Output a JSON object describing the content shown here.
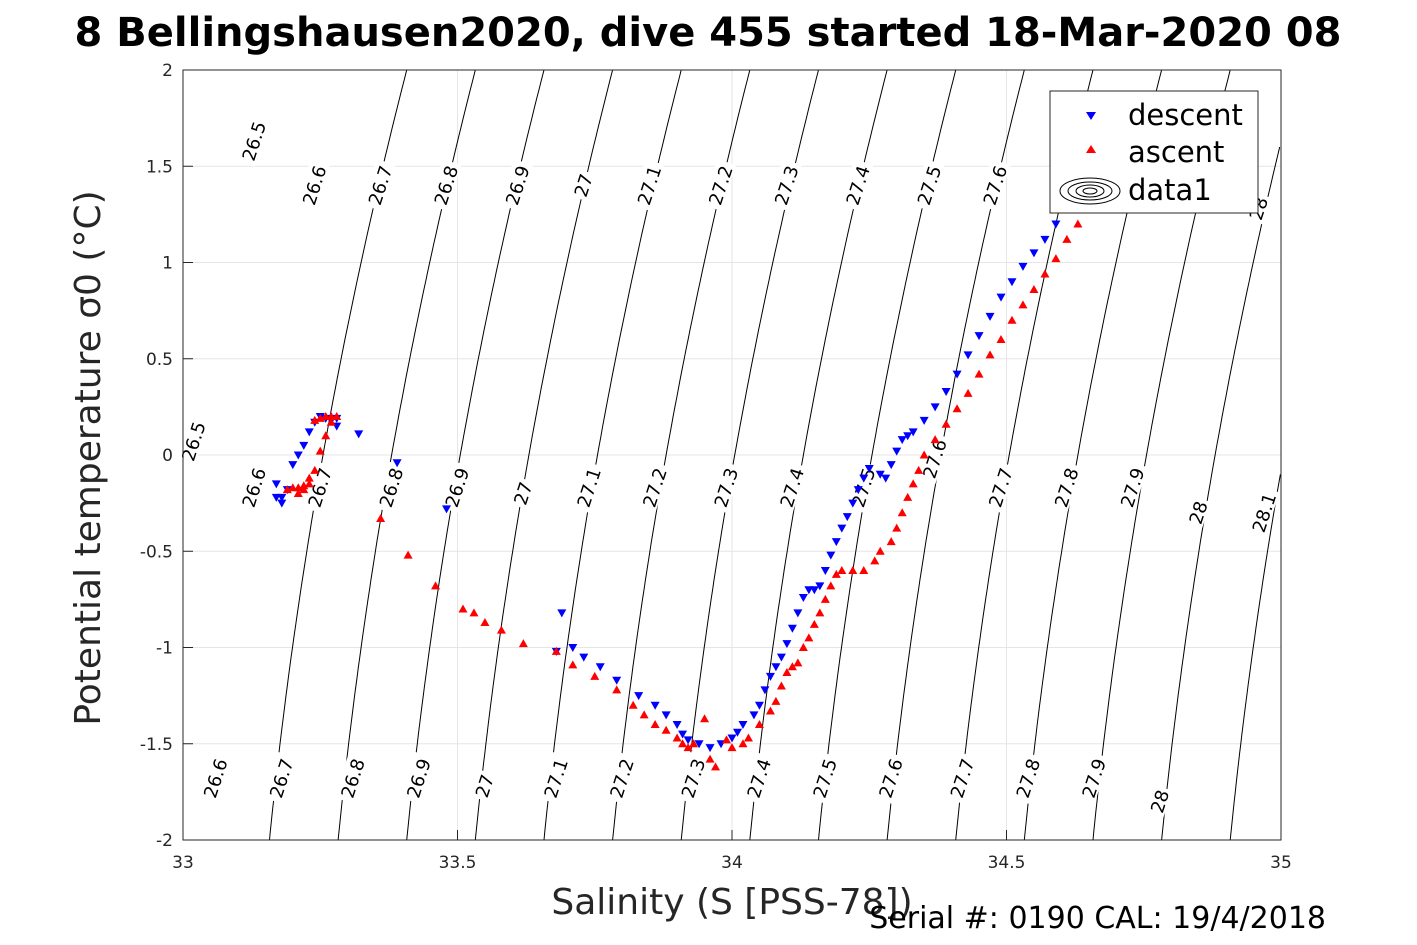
{
  "chart_data": {
    "type": "scatter",
    "title": "8 Bellingshausen2020, dive 455 started 18-Mar-2020 08",
    "xlabel": "Salinity (S [PSS-78])",
    "ylabel": "Potential temperature σ0 (°C)",
    "footer": "Serial #: 0190  CAL: 19/4/2018",
    "xlim": [
      33,
      35
    ],
    "ylim": [
      -2,
      2
    ],
    "xticks": [
      33,
      33.5,
      34,
      34.5,
      35
    ],
    "yticks": [
      -2,
      -1.5,
      -1,
      -0.5,
      0,
      0.5,
      1,
      1.5,
      2
    ],
    "xtick_labels": [
      "33",
      "33.5",
      "34",
      "34.5",
      "35"
    ],
    "ytick_labels": [
      "-2",
      "-1.5",
      "-1",
      "-0.5",
      "0",
      "0.5",
      "1",
      "1.5",
      "2"
    ],
    "grid": true,
    "legend_position": "top-right",
    "legend": [
      "descent",
      "ascent",
      "data1"
    ],
    "colors": {
      "descent": "#0000ff",
      "ascent": "#ff0000",
      "contour": "#000000",
      "grid": "#e6e6e6"
    },
    "contours": {
      "sigma_levels": [
        "26.5",
        "26.6",
        "26.7",
        "26.8",
        "26.9",
        "27",
        "27.1",
        "27.2",
        "27.3",
        "27.4",
        "27.5",
        "27.6",
        "27.7",
        "27.8",
        "27.9",
        "28",
        "28.1"
      ],
      "top_labels": [
        {
          "text": "26.5",
          "s": 33.13,
          "t": 1.63
        },
        {
          "text": "26.6",
          "s": 33.24,
          "t": 1.4
        },
        {
          "text": "26.7",
          "s": 33.36,
          "t": 1.4
        },
        {
          "text": "26.8",
          "s": 33.48,
          "t": 1.4
        },
        {
          "text": "26.9",
          "s": 33.61,
          "t": 1.4
        },
        {
          "text": "27",
          "s": 33.73,
          "t": 1.4
        },
        {
          "text": "27.1",
          "s": 33.85,
          "t": 1.4
        },
        {
          "text": "27.2",
          "s": 33.98,
          "t": 1.4
        },
        {
          "text": "27.3",
          "s": 34.1,
          "t": 1.4
        },
        {
          "text": "27.4",
          "s": 34.23,
          "t": 1.4
        },
        {
          "text": "27.5",
          "s": 34.36,
          "t": 1.4
        },
        {
          "text": "27.6",
          "s": 34.48,
          "t": 1.4
        },
        {
          "text": "28",
          "s": 34.96,
          "t": 1.28
        }
      ],
      "middle_labels": [
        {
          "text": "26.5",
          "s": 33.02,
          "t": 0.07
        },
        {
          "text": "26.6",
          "s": 33.13,
          "t": -0.17
        },
        {
          "text": "26.7",
          "s": 33.25,
          "t": -0.17
        },
        {
          "text": "26.8",
          "s": 33.38,
          "t": -0.17
        },
        {
          "text": "26.9",
          "s": 33.5,
          "t": -0.17
        },
        {
          "text": "27",
          "s": 33.62,
          "t": -0.2
        },
        {
          "text": "27.1",
          "s": 33.74,
          "t": -0.17
        },
        {
          "text": "27.2",
          "s": 33.86,
          "t": -0.17
        },
        {
          "text": "27.3",
          "s": 33.99,
          "t": -0.17
        },
        {
          "text": "27.4",
          "s": 34.11,
          "t": -0.17
        },
        {
          "text": "27.5",
          "s": 34.24,
          "t": -0.17
        },
        {
          "text": "27.6",
          "s": 34.37,
          "t": -0.02
        },
        {
          "text": "27.7",
          "s": 34.49,
          "t": -0.17
        },
        {
          "text": "27.8",
          "s": 34.61,
          "t": -0.17
        },
        {
          "text": "27.9",
          "s": 34.73,
          "t": -0.17
        },
        {
          "text": "28",
          "s": 34.85,
          "t": -0.3
        },
        {
          "text": "28.1",
          "s": 34.97,
          "t": -0.3
        }
      ],
      "bottom_labels": [
        {
          "text": "26.6",
          "s": 33.06,
          "t": -1.68
        },
        {
          "text": "26.7",
          "s": 33.18,
          "t": -1.68
        },
        {
          "text": "26.8",
          "s": 33.31,
          "t": -1.68
        },
        {
          "text": "26.9",
          "s": 33.43,
          "t": -1.68
        },
        {
          "text": "27",
          "s": 33.55,
          "t": -1.72
        },
        {
          "text": "27.1",
          "s": 33.68,
          "t": -1.68
        },
        {
          "text": "27.2",
          "s": 33.8,
          "t": -1.68
        },
        {
          "text": "27.3",
          "s": 33.93,
          "t": -1.68
        },
        {
          "text": "27.4",
          "s": 34.05,
          "t": -1.68
        },
        {
          "text": "27.5",
          "s": 34.17,
          "t": -1.68
        },
        {
          "text": "27.6",
          "s": 34.29,
          "t": -1.68
        },
        {
          "text": "27.7",
          "s": 34.42,
          "t": -1.68
        },
        {
          "text": "27.8",
          "s": 34.54,
          "t": -1.68
        },
        {
          "text": "27.9",
          "s": 34.66,
          "t": -1.68
        },
        {
          "text": "28",
          "s": 34.78,
          "t": -1.8
        }
      ]
    },
    "series": [
      {
        "name": "descent",
        "marker": "triangle-down",
        "x": [
          33.17,
          33.17,
          33.18,
          33.18,
          33.19,
          33.2,
          33.21,
          33.22,
          33.23,
          33.24,
          33.25,
          33.26,
          33.27,
          33.28,
          33.28,
          33.32,
          33.39,
          33.48,
          33.68,
          33.69,
          33.71,
          33.73,
          33.76,
          33.79,
          33.83,
          33.86,
          33.88,
          33.9,
          33.91,
          33.92,
          33.94,
          33.96,
          33.98,
          34.0,
          34.01,
          34.02,
          34.04,
          34.05,
          34.06,
          34.07,
          34.08,
          34.09,
          34.1,
          34.11,
          34.12,
          34.13,
          34.14,
          34.15,
          34.16,
          34.17,
          34.18,
          34.19,
          34.2,
          34.21,
          34.22,
          34.23,
          34.24,
          34.25,
          34.27,
          34.28,
          34.29,
          34.3,
          34.31,
          34.32,
          34.33,
          34.35,
          34.37,
          34.39,
          34.41,
          34.43,
          34.45,
          34.47,
          34.49,
          34.51,
          34.53,
          34.55,
          34.57,
          34.59,
          34.61,
          34.63,
          34.65,
          34.66
        ],
        "y": [
          -0.22,
          -0.15,
          -0.22,
          -0.25,
          -0.18,
          -0.05,
          0.0,
          0.05,
          0.12,
          0.17,
          0.2,
          0.19,
          0.18,
          0.19,
          0.15,
          0.11,
          -0.04,
          -0.28,
          -1.02,
          -0.82,
          -1.0,
          -1.05,
          -1.1,
          -1.17,
          -1.25,
          -1.3,
          -1.35,
          -1.4,
          -1.45,
          -1.48,
          -1.5,
          -1.52,
          -1.5,
          -1.47,
          -1.44,
          -1.4,
          -1.35,
          -1.3,
          -1.22,
          -1.15,
          -1.1,
          -1.05,
          -0.98,
          -0.9,
          -0.82,
          -0.74,
          -0.7,
          -0.7,
          -0.68,
          -0.6,
          -0.52,
          -0.45,
          -0.38,
          -0.32,
          -0.25,
          -0.18,
          -0.12,
          -0.07,
          -0.1,
          -0.12,
          -0.05,
          0.02,
          0.08,
          0.1,
          0.12,
          0.18,
          0.25,
          0.33,
          0.42,
          0.52,
          0.62,
          0.72,
          0.82,
          0.9,
          0.98,
          1.05,
          1.12,
          1.2,
          1.28,
          1.36,
          1.42,
          1.47
        ]
      },
      {
        "name": "ascent",
        "marker": "triangle-up",
        "x": [
          33.19,
          33.2,
          33.21,
          33.22,
          33.23,
          33.24,
          33.25,
          33.26,
          33.27,
          33.28,
          33.27,
          33.26,
          33.25,
          33.24,
          33.23,
          33.22,
          33.21,
          33.36,
          33.41,
          33.46,
          33.51,
          33.53,
          33.55,
          33.58,
          33.62,
          33.68,
          33.71,
          33.75,
          33.79,
          33.82,
          33.84,
          33.86,
          33.88,
          33.9,
          33.91,
          33.92,
          33.93,
          33.95,
          33.96,
          33.97,
          33.99,
          34.0,
          34.02,
          34.03,
          34.05,
          34.07,
          34.08,
          34.09,
          34.1,
          34.11,
          34.12,
          34.13,
          34.14,
          34.15,
          34.16,
          34.17,
          34.18,
          34.19,
          34.2,
          34.22,
          34.24,
          34.26,
          34.27,
          34.29,
          34.3,
          34.31,
          34.32,
          34.33,
          34.34,
          34.35,
          34.37,
          34.39,
          34.41,
          34.43,
          34.45,
          34.47,
          34.49,
          34.51,
          34.53,
          34.55,
          34.57,
          34.59,
          34.61,
          34.63,
          34.65,
          34.67
        ],
        "y": [
          -0.18,
          -0.17,
          -0.17,
          -0.16,
          -0.12,
          -0.08,
          0.02,
          0.1,
          0.17,
          0.2,
          0.2,
          0.2,
          0.19,
          0.18,
          -0.15,
          -0.18,
          -0.2,
          -0.33,
          -0.52,
          -0.68,
          -0.8,
          -0.82,
          -0.87,
          -0.91,
          -0.98,
          -1.02,
          -1.09,
          -1.15,
          -1.22,
          -1.3,
          -1.35,
          -1.4,
          -1.43,
          -1.47,
          -1.5,
          -1.52,
          -1.5,
          -1.37,
          -1.58,
          -1.62,
          -1.48,
          -1.52,
          -1.5,
          -1.47,
          -1.4,
          -1.33,
          -1.28,
          -1.2,
          -1.13,
          -1.1,
          -1.08,
          -1.0,
          -0.95,
          -0.88,
          -0.82,
          -0.75,
          -0.68,
          -0.62,
          -0.6,
          -0.6,
          -0.6,
          -0.55,
          -0.5,
          -0.45,
          -0.38,
          -0.3,
          -0.22,
          -0.15,
          -0.08,
          0.0,
          0.08,
          0.16,
          0.24,
          0.32,
          0.42,
          0.52,
          0.6,
          0.7,
          0.78,
          0.86,
          0.94,
          1.02,
          1.12,
          1.2,
          1.3,
          1.38
        ]
      }
    ]
  }
}
